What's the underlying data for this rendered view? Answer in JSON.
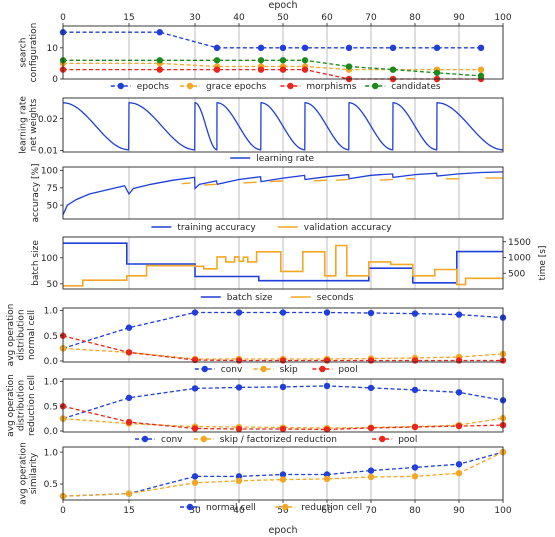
{
  "chart_data": {
    "type": "line",
    "x_axis_label": "epoch",
    "x_ticks": [
      0,
      15,
      30,
      40,
      50,
      60,
      70,
      80,
      90,
      100
    ],
    "xlim": [
      0,
      100
    ],
    "colors": {
      "blue": "#1f3fd8",
      "orange": "#f5a623",
      "red": "#e8261c",
      "green": "#1a8a1a",
      "grid": "#b8b8b8"
    },
    "panels": [
      {
        "id": "search-configuration",
        "ylabel": [
          "search",
          "configuration"
        ],
        "ylim": [
          0,
          17
        ],
        "y_ticks": [
          "0",
          "10"
        ],
        "y_tick_values": [
          0,
          10
        ],
        "legend": [
          "epochs",
          "grace epochs",
          "morphisms",
          "candidates"
        ],
        "series": [
          {
            "name": "epochs",
            "color": "blue",
            "dashed": true,
            "markers": true,
            "x": [
              0,
              22,
              35,
              45,
              50,
              55,
              65,
              75,
              85,
              95
            ],
            "y": [
              15,
              15,
              10,
              10,
              10,
              10,
              10,
              10,
              10,
              10
            ]
          },
          {
            "name": "grace epochs",
            "color": "orange",
            "dashed": true,
            "markers": true,
            "x": [
              0,
              22,
              35,
              45,
              50,
              55,
              65,
              75,
              85,
              95
            ],
            "y": [
              5,
              5,
              4,
              4,
              4,
              4,
              3,
              3,
              3,
              3
            ]
          },
          {
            "name": "morphisms",
            "color": "red",
            "dashed": true,
            "markers": true,
            "x": [
              0,
              22,
              35,
              45,
              50,
              55,
              65,
              75,
              85,
              95
            ],
            "y": [
              3,
              3,
              3,
              3,
              3,
              3,
              0,
              0,
              0,
              0
            ]
          },
          {
            "name": "candidates",
            "color": "green",
            "dashed": true,
            "markers": true,
            "x": [
              0,
              22,
              35,
              45,
              50,
              55,
              65,
              75,
              85,
              95
            ],
            "y": [
              6,
              6,
              6,
              6,
              6,
              6,
              4,
              3,
              2,
              1
            ]
          }
        ]
      },
      {
        "id": "learning-rate",
        "ylabel": [
          "learning rate",
          "net weights"
        ],
        "ylim": [
          0.0095,
          0.0265
        ],
        "y_ticks": [
          "0.01",
          "0.02"
        ],
        "y_tick_values": [
          0.01,
          0.02
        ],
        "legend": [
          "learning rate"
        ],
        "lr_restart_epochs": [
          0,
          15,
          30,
          35,
          45,
          55,
          65,
          75,
          85,
          100
        ],
        "lr_max": 0.025,
        "lr_min": 0.0102,
        "series": [
          {
            "name": "learning rate",
            "color": "blue"
          }
        ]
      },
      {
        "id": "accuracy",
        "ylabel": [
          "accuracy [%]"
        ],
        "ylim": [
          30,
          105
        ],
        "y_ticks": [
          "50",
          "75",
          "100"
        ],
        "y_tick_values": [
          50,
          75,
          100
        ],
        "legend": [
          "training accuracy",
          "validation accuracy"
        ],
        "series": [
          {
            "name": "training accuracy",
            "color": "blue",
            "x": [
              0,
              1,
              3,
              6,
              10,
              14,
              15,
              16,
              20,
              25,
              29.9,
              30,
              31,
              34.9,
              35,
              40,
              44.9,
              45,
              50,
              54.9,
              55,
              60,
              64.9,
              65,
              70,
              74.9,
              75,
              80,
              84.9,
              85,
              90,
              95,
              100
            ],
            "y": [
              36,
              50,
              58,
              66,
              72,
              78,
              66,
              74,
              80,
              86,
              90,
              74,
              80,
              85,
              80,
              87,
              91,
              84,
              89,
              93,
              87,
              91,
              94,
              88,
              93,
              95,
              90,
              94,
              96,
              92,
              95,
              97,
              98
            ]
          },
          {
            "name": "validation accuracy",
            "color": "orange",
            "segments": [
              {
                "x": [
                  27,
                  29
                ],
                "y": [
                  81,
                  82
                ]
              },
              {
                "x": [
                  32,
                  35
                ],
                "y": [
                  79,
                  80
                ]
              },
              {
                "x": [
                  41,
                  44
                ],
                "y": [
                  82,
                  83
                ]
              },
              {
                "x": [
                  47,
                  50
                ],
                "y": [
                  84,
                  85
                ]
              },
              {
                "x": [
                  57,
                  60
                ],
                "y": [
                  85,
                  86
                ]
              },
              {
                "x": [
                  62,
                  65
                ],
                "y": [
                  86,
                  87
                ]
              },
              {
                "x": [
                  72,
                  75
                ],
                "y": [
                  86,
                  87
                ]
              },
              {
                "x": [
                  78,
                  80
                ],
                "y": [
                  88,
                  88
                ]
              },
              {
                "x": [
                  87,
                  90
                ],
                "y": [
                  88,
                  88
                ]
              },
              {
                "x": [
                  96,
                  100
                ],
                "y": [
                  89,
                  89
                ]
              }
            ]
          }
        ]
      },
      {
        "id": "batch-size",
        "ylabel": [
          "batch size"
        ],
        "ylim": [
          40,
          140
        ],
        "y_ticks": [
          "50",
          "100"
        ],
        "y_tick_values": [
          50,
          100
        ],
        "right_ylabel": "time [s]",
        "right_ylim": [
          0,
          1650
        ],
        "right_y_ticks": [
          "500",
          "1000",
          "1500"
        ],
        "right_y_tick_values": [
          500,
          1000,
          1500
        ],
        "legend": [
          "batch size",
          "seconds"
        ],
        "series": [
          {
            "name": "batch size",
            "color": "blue",
            "step": true,
            "x": [
              0,
              14.5,
              14.5,
              30,
              30,
              44.5,
              44.5,
              69.5,
              69.5,
              79.5,
              79.5,
              89.5,
              89.5,
              100
            ],
            "y": [
              128,
              128,
              88,
              88,
              64,
              64,
              56,
              56,
              80,
              80,
              52,
              52,
              112,
              112
            ]
          },
          {
            "name": "seconds",
            "color": "orange",
            "step": true,
            "axis": "right",
            "x": [
              0,
              4.5,
              4.5,
              14.5,
              14.5,
              19,
              19,
              30,
              30,
              32,
              32,
              35,
              35,
              37,
              37,
              39,
              39,
              40,
              40,
              41,
              41,
              42,
              42,
              44,
              44,
              49.5,
              49.5,
              54.5,
              54.5,
              59.5,
              59.5,
              62,
              62,
              64.5,
              64.5,
              69.5,
              69.5,
              74.5,
              74.5,
              79.5,
              79.5,
              84.5,
              84.5,
              89.5,
              89.5,
              91.5,
              91.5,
              100
            ],
            "y": [
              100,
              100,
              280,
              280,
              420,
              420,
              740,
              740,
              720,
              720,
              640,
              640,
              1020,
              1020,
              860,
              860,
              1020,
              1020,
              880,
              880,
              1010,
              1010,
              860,
              860,
              1180,
              1180,
              560,
              560,
              1180,
              1180,
              420,
              420,
              1380,
              1380,
              420,
              420,
              860,
              860,
              780,
              780,
              420,
              420,
              620,
              620,
              140,
              140,
              340,
              340
            ]
          }
        ]
      },
      {
        "id": "op-normal",
        "ylabel": [
          "avg operation",
          "distribution",
          "normal cell"
        ],
        "ylim": [
          -0.02,
          1.05
        ],
        "y_ticks": [
          "0.0",
          "0.5",
          "1.0"
        ],
        "y_tick_values": [
          0,
          0.5,
          1.0
        ],
        "legend": [
          "conv",
          "skip",
          "pool"
        ],
        "series": [
          {
            "name": "conv",
            "color": "blue",
            "dashed": true,
            "markers": true,
            "x": [
              0,
              15,
              30,
              40,
              50,
              60,
              70,
              80,
              90,
              100
            ],
            "y": [
              0.25,
              0.66,
              0.96,
              0.96,
              0.96,
              0.96,
              0.95,
              0.94,
              0.92,
              0.86
            ]
          },
          {
            "name": "skip",
            "color": "orange",
            "dashed": true,
            "markers": true,
            "x": [
              0,
              15,
              30,
              40,
              50,
              60,
              70,
              80,
              90,
              100
            ],
            "y": [
              0.25,
              0.17,
              0.04,
              0.04,
              0.04,
              0.04,
              0.05,
              0.06,
              0.08,
              0.14
            ]
          },
          {
            "name": "pool",
            "color": "red",
            "dashed": true,
            "markers": true,
            "x": [
              0,
              15,
              30,
              40,
              50,
              60,
              70,
              80,
              90,
              100
            ],
            "y": [
              0.5,
              0.17,
              0.02,
              0.01,
              0.01,
              0.01,
              0.01,
              0.01,
              0.01,
              0.01
            ]
          }
        ]
      },
      {
        "id": "op-reduction",
        "ylabel": [
          "avg operation",
          "distribution",
          "reduction cell"
        ],
        "ylim": [
          -0.02,
          1.05
        ],
        "y_ticks": [
          "0.0",
          "0.5",
          "1.0"
        ],
        "y_tick_values": [
          0,
          0.5,
          1.0
        ],
        "legend": [
          "conv",
          "skip / factorized reduction",
          "pool"
        ],
        "series": [
          {
            "name": "conv",
            "color": "blue",
            "dashed": true,
            "markers": true,
            "x": [
              0,
              15,
              30,
              40,
              50,
              60,
              70,
              80,
              90,
              100
            ],
            "y": [
              0.25,
              0.67,
              0.86,
              0.88,
              0.89,
              0.91,
              0.87,
              0.83,
              0.78,
              0.62
            ]
          },
          {
            "name": "skip / factorized reduction",
            "color": "orange",
            "dashed": true,
            "markers": true,
            "x": [
              0,
              15,
              30,
              40,
              50,
              60,
              70,
              80,
              90,
              100
            ],
            "y": [
              0.25,
              0.15,
              0.09,
              0.08,
              0.07,
              0.06,
              0.07,
              0.09,
              0.12,
              0.26
            ]
          },
          {
            "name": "pool",
            "color": "red",
            "dashed": true,
            "markers": true,
            "x": [
              0,
              15,
              30,
              40,
              50,
              60,
              70,
              80,
              90,
              100
            ],
            "y": [
              0.5,
              0.18,
              0.05,
              0.04,
              0.04,
              0.03,
              0.06,
              0.08,
              0.1,
              0.12
            ]
          }
        ]
      },
      {
        "id": "similarity",
        "ylabel": [
          "avg operation",
          "similarity"
        ],
        "ylim": [
          0.25,
          1.08
        ],
        "y_ticks": [
          "0.5",
          "1.0"
        ],
        "y_tick_values": [
          0.5,
          1.0
        ],
        "legend": [
          "normal cell",
          "reduction cell"
        ],
        "series": [
          {
            "name": "normal cell",
            "color": "blue",
            "dashed": true,
            "markers": true,
            "x": [
              0,
              15,
              30,
              40,
              50,
              60,
              70,
              80,
              90,
              100
            ],
            "y": [
              0.31,
              0.35,
              0.62,
              0.62,
              0.65,
              0.65,
              0.71,
              0.76,
              0.81,
              1.0
            ]
          },
          {
            "name": "reduction cell",
            "color": "orange",
            "dashed": true,
            "markers": true,
            "x": [
              0,
              15,
              30,
              40,
              50,
              60,
              70,
              80,
              90,
              100
            ],
            "y": [
              0.31,
              0.35,
              0.52,
              0.55,
              0.57,
              0.58,
              0.61,
              0.62,
              0.67,
              1.0
            ]
          }
        ]
      }
    ]
  }
}
